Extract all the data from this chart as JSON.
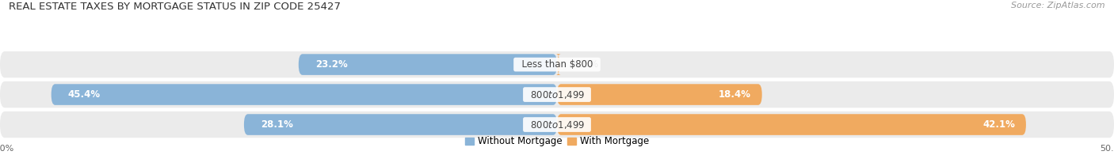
{
  "title": "REAL ESTATE TAXES BY MORTGAGE STATUS IN ZIP CODE 25427",
  "source": "Source: ZipAtlas.com",
  "rows": [
    {
      "label": "Less than $800",
      "without_mortgage": 23.2,
      "with_mortgage": 0.25
    },
    {
      "label": "$800 to $1,499",
      "without_mortgage": 45.4,
      "with_mortgage": 18.4
    },
    {
      "label": "$800 to $1,499",
      "without_mortgage": 28.1,
      "with_mortgage": 42.1
    }
  ],
  "xlim": [
    -50,
    50
  ],
  "color_without": "#8ab4d8",
  "color_with": "#f0aa60",
  "color_without_light": "#b8d4eb",
  "color_with_light": "#f5d0a0",
  "bg_color": "#ffffff",
  "bar_bg_left": "#e2e8f0",
  "bar_bg_right": "#f0ece8",
  "row_bg": "#f5f5f5",
  "title_fontsize": 9.5,
  "source_fontsize": 8,
  "label_fontsize": 8.5,
  "value_fontsize": 8.5
}
